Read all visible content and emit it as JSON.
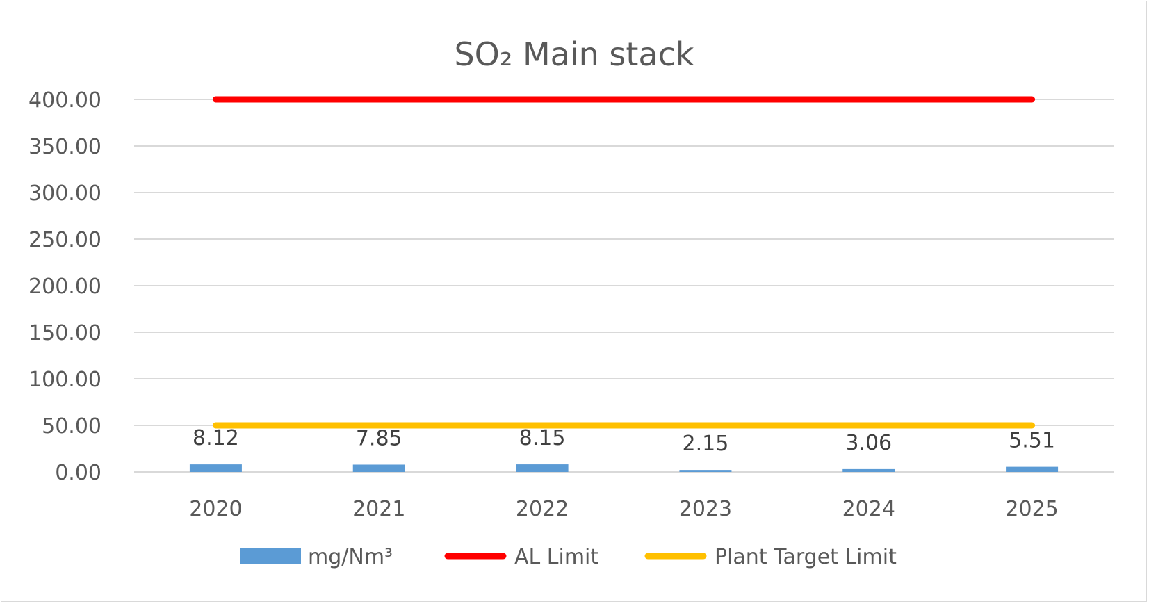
{
  "chart_data": {
    "type": "bar",
    "title": "SO₂ Main stack",
    "categories": [
      "2020",
      "2021",
      "2022",
      "2023",
      "2024",
      "2025"
    ],
    "ylim": [
      0,
      400
    ],
    "yticks": [
      "0.00",
      "50.00",
      "100.00",
      "150.00",
      "200.00",
      "250.00",
      "300.00",
      "350.00",
      "400.00"
    ],
    "grid": true,
    "legend_position": "bottom",
    "series": [
      {
        "name": "mg/Nm³",
        "kind": "bar",
        "color": "#5b9bd5",
        "values": [
          8.12,
          7.85,
          8.15,
          2.15,
          3.06,
          5.51
        ],
        "labels": [
          "8.12",
          "7.85",
          "8.15",
          "2.15",
          "3.06",
          "5.51"
        ]
      },
      {
        "name": "AL Limit",
        "kind": "line",
        "color": "#ff0000",
        "values": [
          400,
          400,
          400,
          400,
          400,
          400
        ]
      },
      {
        "name": "Plant Target Limit",
        "kind": "line",
        "color": "#ffc000",
        "values": [
          50,
          50,
          50,
          50,
          50,
          50
        ]
      }
    ]
  }
}
